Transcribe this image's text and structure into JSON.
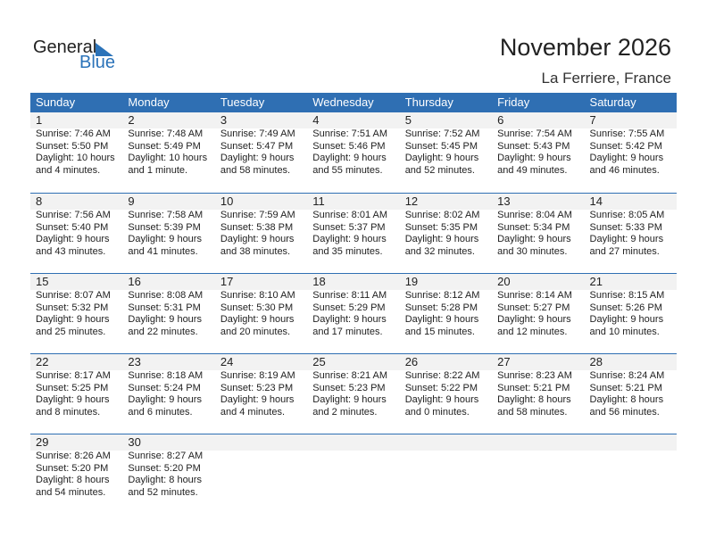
{
  "logo": {
    "general": "General",
    "blue": "Blue"
  },
  "title": "November 2026",
  "location": "La Ferriere, France",
  "accent": "#2f6fb3",
  "days": [
    "Sunday",
    "Monday",
    "Tuesday",
    "Wednesday",
    "Thursday",
    "Friday",
    "Saturday"
  ],
  "weeks": [
    [
      {
        "d": "1",
        "sr": "Sunrise: 7:46 AM",
        "ss": "Sunset: 5:50 PM",
        "dl": "Daylight: 10 hours",
        "dm": "and 4 minutes."
      },
      {
        "d": "2",
        "sr": "Sunrise: 7:48 AM",
        "ss": "Sunset: 5:49 PM",
        "dl": "Daylight: 10 hours",
        "dm": "and 1 minute."
      },
      {
        "d": "3",
        "sr": "Sunrise: 7:49 AM",
        "ss": "Sunset: 5:47 PM",
        "dl": "Daylight: 9 hours",
        "dm": "and 58 minutes."
      },
      {
        "d": "4",
        "sr": "Sunrise: 7:51 AM",
        "ss": "Sunset: 5:46 PM",
        "dl": "Daylight: 9 hours",
        "dm": "and 55 minutes."
      },
      {
        "d": "5",
        "sr": "Sunrise: 7:52 AM",
        "ss": "Sunset: 5:45 PM",
        "dl": "Daylight: 9 hours",
        "dm": "and 52 minutes."
      },
      {
        "d": "6",
        "sr": "Sunrise: 7:54 AM",
        "ss": "Sunset: 5:43 PM",
        "dl": "Daylight: 9 hours",
        "dm": "and 49 minutes."
      },
      {
        "d": "7",
        "sr": "Sunrise: 7:55 AM",
        "ss": "Sunset: 5:42 PM",
        "dl": "Daylight: 9 hours",
        "dm": "and 46 minutes."
      }
    ],
    [
      {
        "d": "8",
        "sr": "Sunrise: 7:56 AM",
        "ss": "Sunset: 5:40 PM",
        "dl": "Daylight: 9 hours",
        "dm": "and 43 minutes."
      },
      {
        "d": "9",
        "sr": "Sunrise: 7:58 AM",
        "ss": "Sunset: 5:39 PM",
        "dl": "Daylight: 9 hours",
        "dm": "and 41 minutes."
      },
      {
        "d": "10",
        "sr": "Sunrise: 7:59 AM",
        "ss": "Sunset: 5:38 PM",
        "dl": "Daylight: 9 hours",
        "dm": "and 38 minutes."
      },
      {
        "d": "11",
        "sr": "Sunrise: 8:01 AM",
        "ss": "Sunset: 5:37 PM",
        "dl": "Daylight: 9 hours",
        "dm": "and 35 minutes."
      },
      {
        "d": "12",
        "sr": "Sunrise: 8:02 AM",
        "ss": "Sunset: 5:35 PM",
        "dl": "Daylight: 9 hours",
        "dm": "and 32 minutes."
      },
      {
        "d": "13",
        "sr": "Sunrise: 8:04 AM",
        "ss": "Sunset: 5:34 PM",
        "dl": "Daylight: 9 hours",
        "dm": "and 30 minutes."
      },
      {
        "d": "14",
        "sr": "Sunrise: 8:05 AM",
        "ss": "Sunset: 5:33 PM",
        "dl": "Daylight: 9 hours",
        "dm": "and 27 minutes."
      }
    ],
    [
      {
        "d": "15",
        "sr": "Sunrise: 8:07 AM",
        "ss": "Sunset: 5:32 PM",
        "dl": "Daylight: 9 hours",
        "dm": "and 25 minutes."
      },
      {
        "d": "16",
        "sr": "Sunrise: 8:08 AM",
        "ss": "Sunset: 5:31 PM",
        "dl": "Daylight: 9 hours",
        "dm": "and 22 minutes."
      },
      {
        "d": "17",
        "sr": "Sunrise: 8:10 AM",
        "ss": "Sunset: 5:30 PM",
        "dl": "Daylight: 9 hours",
        "dm": "and 20 minutes."
      },
      {
        "d": "18",
        "sr": "Sunrise: 8:11 AM",
        "ss": "Sunset: 5:29 PM",
        "dl": "Daylight: 9 hours",
        "dm": "and 17 minutes."
      },
      {
        "d": "19",
        "sr": "Sunrise: 8:12 AM",
        "ss": "Sunset: 5:28 PM",
        "dl": "Daylight: 9 hours",
        "dm": "and 15 minutes."
      },
      {
        "d": "20",
        "sr": "Sunrise: 8:14 AM",
        "ss": "Sunset: 5:27 PM",
        "dl": "Daylight: 9 hours",
        "dm": "and 12 minutes."
      },
      {
        "d": "21",
        "sr": "Sunrise: 8:15 AM",
        "ss": "Sunset: 5:26 PM",
        "dl": "Daylight: 9 hours",
        "dm": "and 10 minutes."
      }
    ],
    [
      {
        "d": "22",
        "sr": "Sunrise: 8:17 AM",
        "ss": "Sunset: 5:25 PM",
        "dl": "Daylight: 9 hours",
        "dm": "and 8 minutes."
      },
      {
        "d": "23",
        "sr": "Sunrise: 8:18 AM",
        "ss": "Sunset: 5:24 PM",
        "dl": "Daylight: 9 hours",
        "dm": "and 6 minutes."
      },
      {
        "d": "24",
        "sr": "Sunrise: 8:19 AM",
        "ss": "Sunset: 5:23 PM",
        "dl": "Daylight: 9 hours",
        "dm": "and 4 minutes."
      },
      {
        "d": "25",
        "sr": "Sunrise: 8:21 AM",
        "ss": "Sunset: 5:23 PM",
        "dl": "Daylight: 9 hours",
        "dm": "and 2 minutes."
      },
      {
        "d": "26",
        "sr": "Sunrise: 8:22 AM",
        "ss": "Sunset: 5:22 PM",
        "dl": "Daylight: 9 hours",
        "dm": "and 0 minutes."
      },
      {
        "d": "27",
        "sr": "Sunrise: 8:23 AM",
        "ss": "Sunset: 5:21 PM",
        "dl": "Daylight: 8 hours",
        "dm": "and 58 minutes."
      },
      {
        "d": "28",
        "sr": "Sunrise: 8:24 AM",
        "ss": "Sunset: 5:21 PM",
        "dl": "Daylight: 8 hours",
        "dm": "and 56 minutes."
      }
    ],
    [
      {
        "d": "29",
        "sr": "Sunrise: 8:26 AM",
        "ss": "Sunset: 5:20 PM",
        "dl": "Daylight: 8 hours",
        "dm": "and 54 minutes."
      },
      {
        "d": "30",
        "sr": "Sunrise: 8:27 AM",
        "ss": "Sunset: 5:20 PM",
        "dl": "Daylight: 8 hours",
        "dm": "and 52 minutes."
      }
    ]
  ]
}
